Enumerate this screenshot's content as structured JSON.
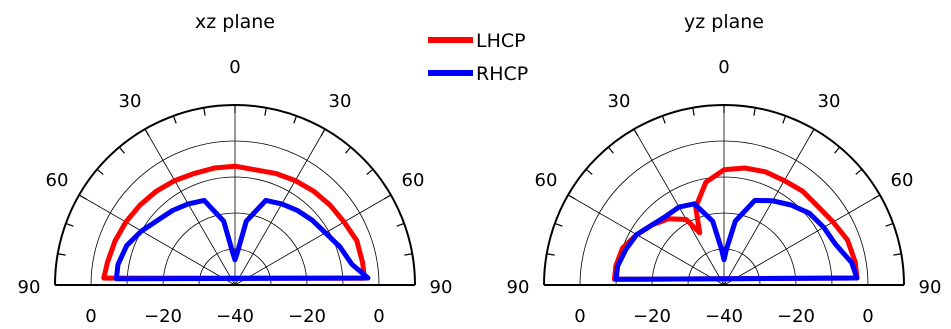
{
  "chart_data": [
    {
      "type": "polar",
      "title": "xz plane",
      "angle_range_deg": [
        -90,
        90
      ],
      "angle_zero_direction": "top",
      "angle_ticks": [
        "0",
        "30",
        "30",
        "60",
        "60",
        "90",
        "90"
      ],
      "radial_range_db": [
        -40,
        10
      ],
      "radial_grid_db": [
        -30,
        -20,
        -10,
        0,
        10
      ],
      "radial_tick_labels": [
        "0",
        "−20",
        "−40",
        "−20",
        "0"
      ],
      "grid": true,
      "series": [
        {
          "name": "LHCP",
          "color": "#ff0000",
          "points": [
            [
              -87,
              -3.5
            ],
            [
              -80,
              -4
            ],
            [
              -70,
              -4.5
            ],
            [
              -60,
              -5
            ],
            [
              -50,
              -5.5
            ],
            [
              -40,
              -6
            ],
            [
              -30,
              -6.5
            ],
            [
              -20,
              -7
            ],
            [
              -10,
              -7
            ],
            [
              0,
              -7
            ],
            [
              10,
              -7.5
            ],
            [
              20,
              -7
            ],
            [
              30,
              -6.5
            ],
            [
              40,
              -6
            ],
            [
              50,
              -5.5
            ],
            [
              60,
              -5
            ],
            [
              70,
              -4
            ],
            [
              80,
              -4
            ],
            [
              87,
              -4
            ]
          ]
        },
        {
          "name": "RHCP",
          "color": "#0000ff",
          "points": [
            [
              -87,
              -7
            ],
            [
              -80,
              -7
            ],
            [
              -70,
              -8
            ],
            [
              -60,
              -10
            ],
            [
              -50,
              -12
            ],
            [
              -40,
              -13
            ],
            [
              -30,
              -14
            ],
            [
              -20,
              -15
            ],
            [
              -10,
              -22
            ],
            [
              -4,
              -31
            ],
            [
              0,
              -33
            ],
            [
              4,
              -31
            ],
            [
              10,
              -22
            ],
            [
              20,
              -15
            ],
            [
              30,
              -14
            ],
            [
              40,
              -13
            ],
            [
              50,
              -12
            ],
            [
              60,
              -11
            ],
            [
              70,
              -9
            ],
            [
              80,
              -7
            ],
            [
              87,
              -3
            ]
          ]
        }
      ]
    },
    {
      "type": "polar",
      "title": "yz plane",
      "angle_range_deg": [
        -90,
        90
      ],
      "angle_zero_direction": "top",
      "angle_ticks": [
        "0",
        "30",
        "30",
        "60",
        "60",
        "90",
        "90"
      ],
      "radial_range_db": [
        -40,
        10
      ],
      "radial_grid_db": [
        -30,
        -20,
        -10,
        0,
        10
      ],
      "radial_tick_labels": [
        "0",
        "−20",
        "−40",
        "−20",
        "0"
      ],
      "grid": true,
      "series": [
        {
          "name": "LHCP",
          "color": "#ff0000",
          "points": [
            [
              -87,
              -9.5
            ],
            [
              -80,
              -9.5
            ],
            [
              -70,
              -10
            ],
            [
              -60,
              -12
            ],
            [
              -50,
              -14
            ],
            [
              -40,
              -16
            ],
            [
              -30,
              -19
            ],
            [
              -25,
              -24
            ],
            [
              -20,
              -17
            ],
            [
              -10,
              -11
            ],
            [
              0,
              -8
            ],
            [
              10,
              -7
            ],
            [
              20,
              -6.5
            ],
            [
              30,
              -6.5
            ],
            [
              40,
              -6
            ],
            [
              50,
              -6
            ],
            [
              60,
              -5
            ],
            [
              70,
              -3.5
            ],
            [
              80,
              -3
            ],
            [
              87,
              -3
            ]
          ]
        },
        {
          "name": "RHCP",
          "color": "#0000ff",
          "points": [
            [
              -87,
              -10
            ],
            [
              -80,
              -10
            ],
            [
              -70,
              -11
            ],
            [
              -60,
              -12
            ],
            [
              -50,
              -14
            ],
            [
              -40,
              -15
            ],
            [
              -30,
              -15
            ],
            [
              -20,
              -16
            ],
            [
              -10,
              -22
            ],
            [
              -4,
              -30
            ],
            [
              0,
              -33
            ],
            [
              4,
              -30
            ],
            [
              10,
              -22
            ],
            [
              20,
              -15
            ],
            [
              30,
              -13
            ],
            [
              40,
              -11
            ],
            [
              50,
              -9
            ],
            [
              60,
              -8
            ],
            [
              70,
              -7
            ],
            [
              80,
              -4
            ],
            [
              87,
              -3
            ]
          ]
        }
      ]
    }
  ],
  "legend": {
    "items": [
      {
        "label": "LHCP",
        "color": "#ff0000"
      },
      {
        "label": "RHCP",
        "color": "#0000ff"
      }
    ]
  }
}
